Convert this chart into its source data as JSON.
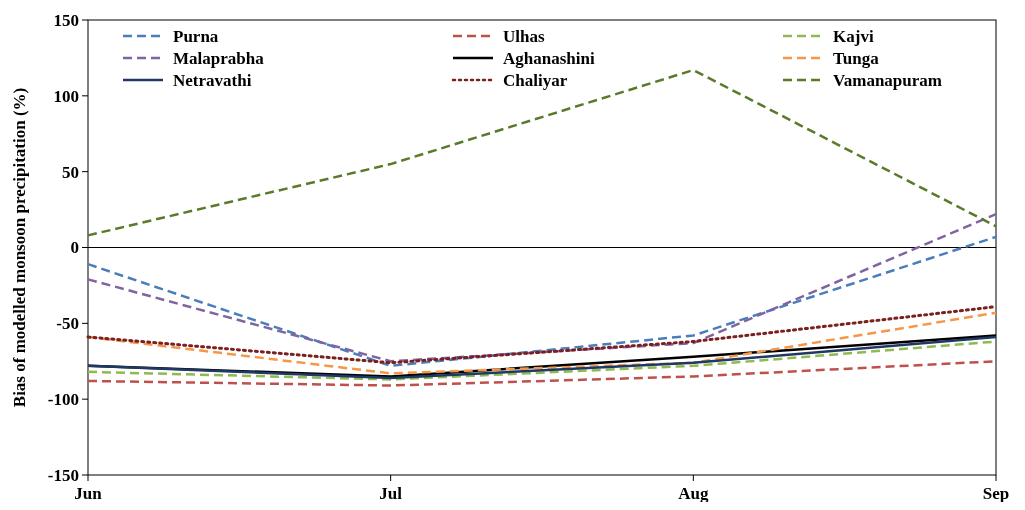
{
  "chart_data": {
    "type": "line",
    "ylabel": "Bias of modelled monsoon precipitation (%)",
    "categories": [
      "Jun",
      "Jul",
      "Aug",
      "Sep"
    ],
    "ylim": [
      -150,
      150
    ],
    "yticks": [
      -150,
      -100,
      -50,
      0,
      50,
      100,
      150
    ],
    "grid": false,
    "legend": "top",
    "marker": "none",
    "ref_lines": [
      {
        "axis": "y",
        "value": 0,
        "color": "#000000",
        "line_style": "solid"
      }
    ],
    "series": [
      {
        "name": "Purna",
        "color": "#4a7ebb",
        "line_style": "dashed",
        "values": [
          -11,
          -78,
          -58,
          7
        ]
      },
      {
        "name": "Ulhas",
        "color": "#c0504d",
        "line_style": "dashed",
        "values": [
          -88,
          -91,
          -85,
          -75
        ]
      },
      {
        "name": "Kajvi",
        "color": "#8dbb4f",
        "line_style": "dashed",
        "values": [
          -82,
          -87,
          -78,
          -62
        ]
      },
      {
        "name": "Malaprabha",
        "color": "#8064a2",
        "line_style": "dashed",
        "values": [
          -21,
          -75,
          -63,
          22
        ]
      },
      {
        "name": "Aghanashini",
        "color": "#000000",
        "line_style": "solid",
        "values": [
          -78,
          -85,
          -72,
          -58
        ]
      },
      {
        "name": "Tunga",
        "color": "#f79646",
        "line_style": "dashed",
        "values": [
          -59,
          -83,
          -76,
          -43
        ]
      },
      {
        "name": "Netravathi",
        "color": "#1f3864",
        "line_style": "solid",
        "values": [
          -78,
          -86,
          -76,
          -59
        ]
      },
      {
        "name": "Chaliyar",
        "color": "#7b1f1f",
        "line_style": "dotted",
        "values": [
          -59,
          -76,
          -62,
          -39
        ]
      },
      {
        "name": "Vamanapuram",
        "color": "#5a7a2a",
        "line_style": "dashed",
        "values": [
          8,
          55,
          117,
          14
        ]
      }
    ]
  }
}
